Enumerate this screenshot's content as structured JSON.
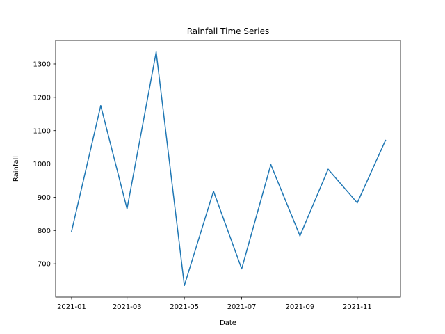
{
  "chart_data": {
    "type": "line",
    "title": "Rainfall Time Series",
    "xlabel": "Date",
    "ylabel": "Rainfall",
    "x": [
      "2021-01-01",
      "2021-02-01",
      "2021-03-01",
      "2021-04-01",
      "2021-05-01",
      "2021-06-01",
      "2021-07-01",
      "2021-08-01",
      "2021-09-01",
      "2021-10-01",
      "2021-11-01",
      "2021-12-01"
    ],
    "series": [
      {
        "values": [
          798,
          1175,
          865,
          1336,
          635,
          918,
          685,
          998,
          784,
          984,
          883,
          1071
        ],
        "color": "#1f77b4"
      }
    ],
    "xticks": [
      {
        "date": "2021-01-01",
        "label": "2021-01"
      },
      {
        "date": "2021-03-01",
        "label": "2021-03"
      },
      {
        "date": "2021-05-01",
        "label": "2021-05"
      },
      {
        "date": "2021-07-01",
        "label": "2021-07"
      },
      {
        "date": "2021-09-01",
        "label": "2021-09"
      },
      {
        "date": "2021-11-01",
        "label": "2021-11"
      }
    ],
    "yticks": [
      700,
      800,
      900,
      1000,
      1100,
      1200,
      1300
    ],
    "xlim": [
      "2020-12-15",
      "2021-12-17"
    ],
    "ylim": [
      600,
      1371
    ],
    "grid": false,
    "legend": "none"
  }
}
